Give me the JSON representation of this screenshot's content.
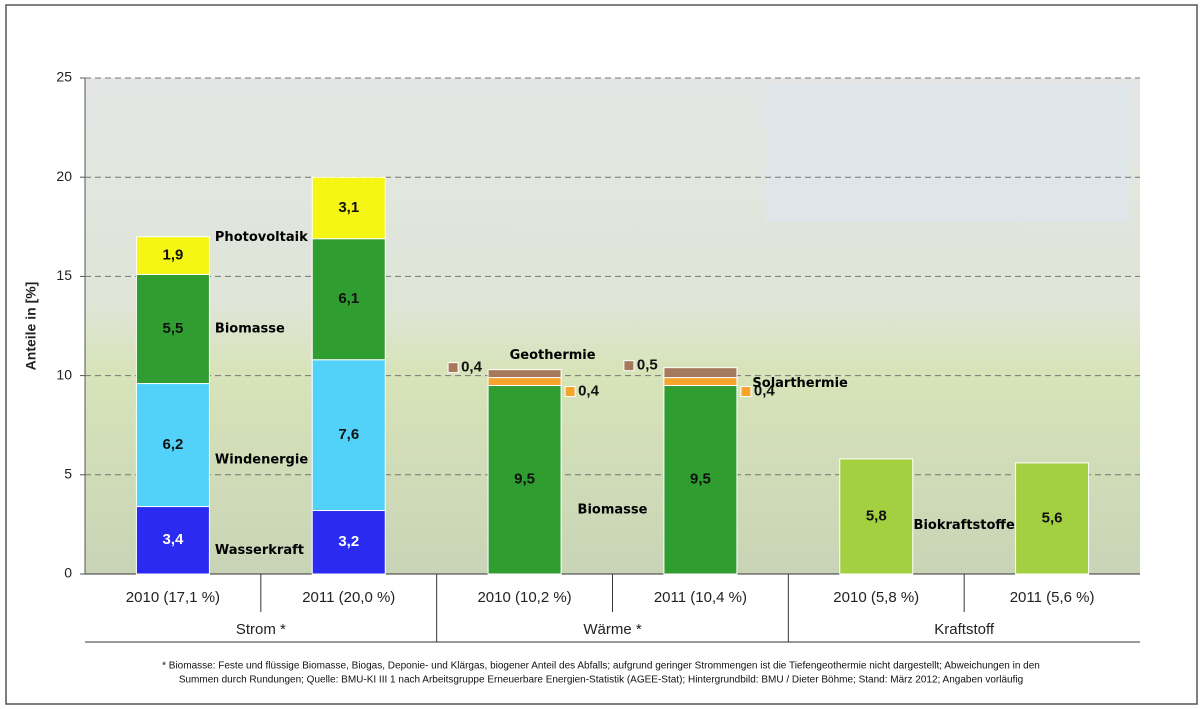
{
  "chart_data": {
    "type": "stacked_bar",
    "y_label": "Anteile in [%]",
    "categories": [
      "2010 (17,1 %)",
      "2011 (20,0 %)",
      "2010 (10,2 %)",
      "2011 (10,4 %)",
      "2010 (5,8 %)",
      "2011 (5,6 %)"
    ],
    "groups": [
      "Strom *",
      "Wärme *",
      "Kraftstoff"
    ],
    "ylim": [
      0,
      25
    ],
    "yticks": [
      0,
      5,
      10,
      15,
      20,
      25
    ],
    "grid": true,
    "series": [
      {
        "name": "Wasserkraft",
        "color": "#2a2af0",
        "values": [
          3.4,
          3.2,
          null,
          null,
          null,
          null
        ],
        "value_labels": [
          "3,4",
          "3,2",
          null,
          null,
          null,
          null
        ]
      },
      {
        "name": "Windenergie",
        "color": "#52d2f8",
        "values": [
          6.2,
          7.6,
          null,
          null,
          null,
          null
        ],
        "value_labels": [
          "6,2",
          "7,6",
          null,
          null,
          null,
          null
        ]
      },
      {
        "name": "Biomasse",
        "color": "#2f9d2f",
        "values": [
          5.5,
          6.1,
          null,
          null,
          null,
          null
        ],
        "value_labels": [
          "5,5",
          "6,1",
          null,
          null,
          null,
          null
        ]
      },
      {
        "name": "Photovoltaik",
        "color": "#f6f614",
        "values": [
          1.9,
          3.1,
          null,
          null,
          null,
          null
        ],
        "value_labels": [
          "1,9",
          "3,1",
          null,
          null,
          null,
          null
        ]
      },
      {
        "name": "Biomasse",
        "color": "#2f9d2f",
        "values": [
          null,
          null,
          9.5,
          9.5,
          null,
          null
        ],
        "value_labels": [
          null,
          null,
          "9,5",
          "9,5",
          null,
          null
        ]
      },
      {
        "name": "Solarthermie",
        "color": "#f6a42c",
        "values": [
          null,
          null,
          0.4,
          0.4,
          null,
          null
        ],
        "value_labels": [
          null,
          null,
          "0,4",
          "0,4",
          null,
          null
        ]
      },
      {
        "name": "Geothermie",
        "color": "#a57a5c",
        "values": [
          null,
          null,
          0.4,
          0.5,
          null,
          null
        ],
        "value_labels": [
          null,
          null,
          "0,4",
          "0,5",
          null,
          null
        ]
      },
      {
        "name": "Biokraftstoffe",
        "color": "#a2d040",
        "values": [
          null,
          null,
          null,
          null,
          5.8,
          5.6
        ],
        "value_labels": [
          null,
          null,
          null,
          null,
          "5,8",
          "5,6"
        ]
      }
    ],
    "footnote": [
      "* Biomasse: Feste und flüssige Biomasse, Biogas, Deponie- und Klärgas, biogener Anteil des Abfalls; aufgrund geringer Strommengen ist die Tiefengeothermie nicht dargestellt; Abweichungen in den",
      "Summen durch Rundungen; Quelle: BMU-KI III 1 nach Arbeitsgruppe Erneuerbare Energien-Statistik (AGEE-Stat); Hintergrundbild: BMU / Dieter Böhme; Stand: März 2012; Angaben vorläufig"
    ]
  }
}
